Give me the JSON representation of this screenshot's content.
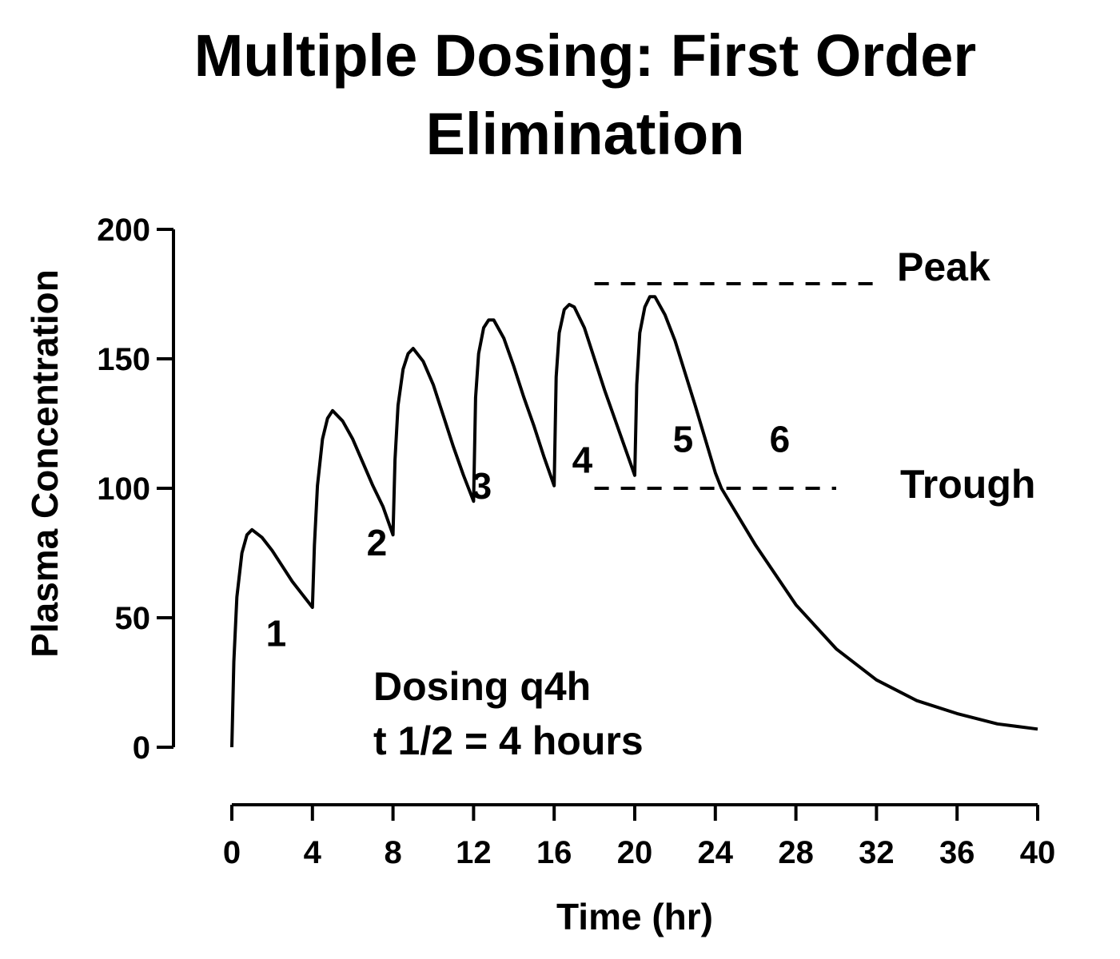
{
  "chart_data": {
    "type": "line",
    "title_lines": [
      "Multiple Dosing:  First Order",
      "Elimination"
    ],
    "xlabel": "Time (hr)",
    "ylabel": "Plasma Concentration",
    "xlim": [
      0,
      40
    ],
    "ylim": [
      0,
      200
    ],
    "x_ticks": [
      "0",
      "4",
      "8",
      "12",
      "16",
      "20",
      "24",
      "28",
      "32",
      "36",
      "40"
    ],
    "y_ticks": [
      "0",
      "50",
      "100",
      "150",
      "200"
    ],
    "series": [
      {
        "x": [
          0,
          0.1,
          0.25,
          0.5,
          0.75,
          1,
          1.5,
          2,
          2.5,
          3,
          3.5,
          4,
          4.1,
          4.25,
          4.5,
          4.75,
          5,
          5.5,
          6,
          6.5,
          7,
          7.5,
          8,
          8.1,
          8.25,
          8.5,
          8.75,
          9,
          9.5,
          10,
          10.5,
          11,
          11.5,
          12,
          12.1,
          12.25,
          12.5,
          12.75,
          13,
          13.5,
          14,
          14.5,
          15,
          15.5,
          16,
          16.1,
          16.25,
          16.5,
          16.75,
          17,
          17.5,
          18,
          18.5,
          19,
          19.5,
          20,
          20.1,
          20.25,
          20.5,
          20.75,
          21,
          21.5,
          22,
          23,
          24,
          24.3,
          26,
          28,
          30,
          32,
          34,
          36,
          38,
          40
        ],
        "y": [
          0,
          33,
          58,
          75,
          82,
          84,
          81,
          76,
          70,
          64,
          59,
          54,
          78,
          101,
          119,
          127,
          130,
          126,
          119,
          110,
          101,
          93,
          82,
          111,
          132,
          146,
          152,
          154,
          149,
          140,
          128,
          116,
          105,
          95,
          135,
          152,
          162,
          165,
          165,
          158,
          147,
          135,
          124,
          112,
          101,
          143,
          160,
          169,
          171,
          170,
          162,
          150,
          138,
          127,
          116,
          105,
          140,
          160,
          170,
          174,
          174,
          167,
          157,
          132,
          106,
          100,
          78,
          55,
          38,
          26,
          18,
          13,
          9,
          7
        ]
      }
    ],
    "dose_labels": [
      {
        "text": "1",
        "x": 2.2,
        "y": 39
      },
      {
        "text": "2",
        "x": 7.2,
        "y": 74
      },
      {
        "text": "3",
        "x": 12.4,
        "y": 96
      },
      {
        "text": "4",
        "x": 17.4,
        "y": 106
      },
      {
        "text": "5",
        "x": 22.4,
        "y": 114
      },
      {
        "text": "6",
        "x": 27.2,
        "y": 114
      }
    ],
    "reference_lines": [
      {
        "label": "Peak",
        "y": 179,
        "x_start": 18,
        "x_end": 32
      },
      {
        "label": "Trough",
        "y": 100,
        "x_start": 18,
        "x_end": 30
      }
    ],
    "annotation_lines": [
      "Dosing q4h",
      "t 1/2 = 4 hours"
    ],
    "line_color": "#000000",
    "grid": false,
    "legend": "none"
  }
}
